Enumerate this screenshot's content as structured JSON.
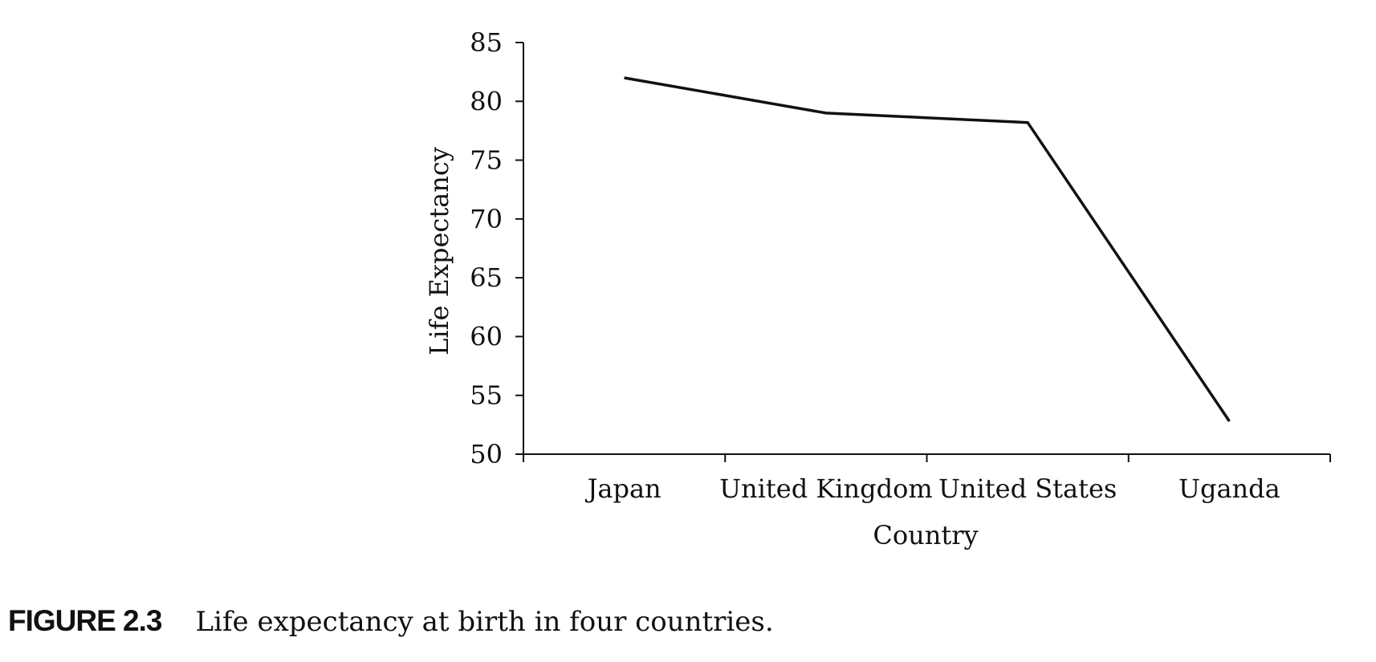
{
  "chart_data": {
    "type": "line",
    "categories": [
      "Japan",
      "United Kingdom",
      "United States",
      "Uganda"
    ],
    "series": [
      {
        "values": [
          82,
          79,
          78.2,
          52.8
        ]
      }
    ],
    "xlabel": "Country",
    "ylabel": "Life Expectancy",
    "ylim": [
      50,
      85
    ],
    "yticks": [
      "50",
      "55",
      "60",
      "65",
      "70",
      "75",
      "80",
      "85"
    ],
    "grid": false,
    "legend": "none",
    "line_color": "#111111"
  },
  "caption": {
    "label": "FIGURE 2.3",
    "text": "Life expectancy at birth in four countries."
  }
}
